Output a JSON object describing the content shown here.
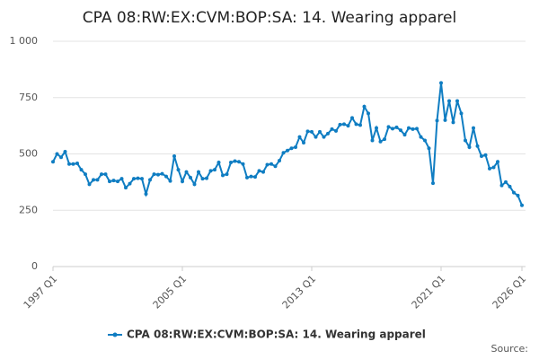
{
  "chart_data": {
    "type": "line",
    "title": "CPA 08:RW:EX:CVM:BOP:SA: 14. Wearing apparel",
    "source": "Source:",
    "categories": [
      "1997 Q1",
      null,
      null,
      null,
      null,
      null,
      null,
      null,
      null,
      null,
      null,
      null,
      null,
      null,
      null,
      null,
      null,
      null,
      null,
      null,
      null,
      null,
      null,
      null,
      null,
      null,
      null,
      null,
      null,
      null,
      null,
      null,
      "2005 Q1",
      null,
      null,
      null,
      null,
      null,
      null,
      null,
      null,
      null,
      null,
      null,
      null,
      null,
      null,
      null,
      null,
      null,
      null,
      null,
      null,
      null,
      null,
      null,
      null,
      null,
      null,
      null,
      null,
      null,
      null,
      null,
      "2013 Q1",
      null,
      null,
      null,
      null,
      null,
      null,
      null,
      null,
      null,
      null,
      null,
      null,
      null,
      null,
      null,
      null,
      null,
      null,
      null,
      null,
      null,
      null,
      null,
      null,
      null,
      null,
      null,
      null,
      null,
      null,
      null,
      "2021 Q1",
      null,
      null,
      null,
      null,
      null,
      null,
      null,
      null,
      null,
      null,
      null,
      null,
      null,
      null,
      null,
      null,
      null,
      null,
      null,
      "2026 Q1"
    ],
    "series": [
      {
        "name": "CPA 08:RW:EX:CVM:BOP:SA: 14. Wearing apparel",
        "color": "#0f7dc2",
        "values": [
          465,
          500,
          485,
          510,
          455,
          455,
          458,
          430,
          410,
          365,
          385,
          385,
          410,
          410,
          378,
          382,
          378,
          390,
          350,
          368,
          390,
          392,
          390,
          322,
          385,
          410,
          408,
          412,
          400,
          380,
          490,
          430,
          378,
          420,
          395,
          365,
          420,
          390,
          392,
          425,
          430,
          462,
          405,
          410,
          462,
          468,
          465,
          455,
          395,
          400,
          398,
          425,
          420,
          452,
          455,
          445,
          470,
          505,
          515,
          525,
          530,
          575,
          550,
          600,
          598,
          575,
          598,
          575,
          590,
          610,
          602,
          630,
          632,
          625,
          660,
          632,
          628,
          710,
          680,
          560,
          615,
          555,
          565,
          620,
          612,
          618,
          605,
          585,
          615,
          610,
          612,
          575,
          560,
          525,
          370,
          648,
          815,
          650,
          735,
          640,
          735,
          680,
          560,
          530,
          615,
          535,
          490,
          495,
          435,
          440,
          465,
          360,
          375,
          355,
          328,
          315,
          272
        ]
      }
    ],
    "ylim": [
      0,
      1000
    ],
    "yticks": [
      0,
      250,
      500,
      750,
      {
        "value": 1000,
        "label": "1 000"
      }
    ],
    "grid": true
  }
}
